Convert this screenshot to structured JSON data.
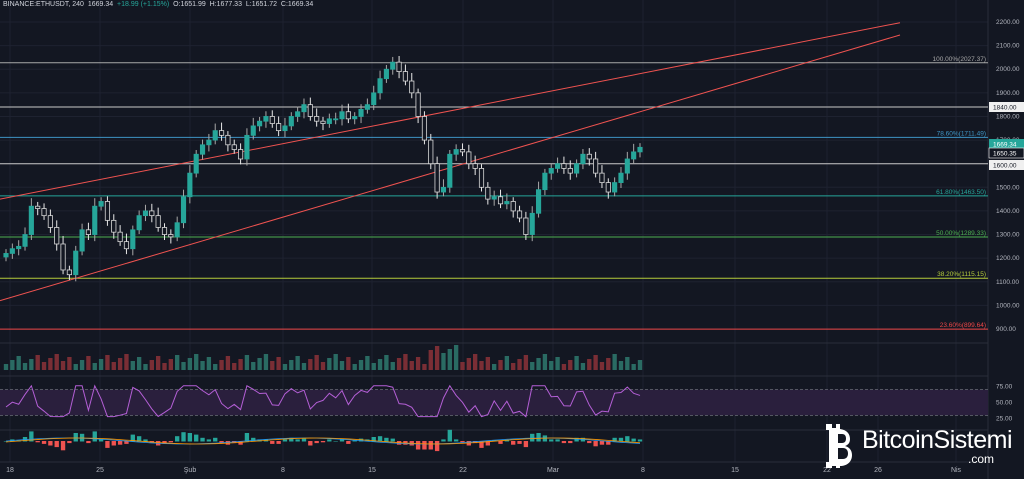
{
  "header": {
    "symbol": "BINANCE:ETHUSDT, 240",
    "last": "1669.34",
    "change": "+18.99 (+1.15%)",
    "open": "O:1651.99",
    "high": "H:1677.33",
    "low": "L:1651.72",
    "close": "C:1669.34"
  },
  "chart_data": {
    "type": "candlestick",
    "price_axis": {
      "ticks": [
        "2200.00",
        "2100.00",
        "2000.00",
        "1900.00",
        "1800.00",
        "1700.00",
        "1600.00",
        "1500.00",
        "1400.00",
        "1300.00",
        "1200.00",
        "1100.00",
        "1000.00",
        "900.00"
      ],
      "ylim": [
        860,
        2240
      ]
    },
    "time_axis": {
      "ticks": [
        "18",
        "25",
        "Şub",
        "8",
        "15",
        "22",
        "Mar",
        "8",
        "15",
        "22",
        "26",
        "Nis"
      ]
    },
    "price_tags": [
      {
        "value": 1840,
        "label": "1840.00",
        "style": "white"
      },
      {
        "value": 1669.34,
        "label": "1669.34",
        "style": "green"
      },
      {
        "value": 1650.35,
        "label": "1650.35",
        "style": "dark"
      },
      {
        "value": 1600,
        "label": "1600.00",
        "style": "white"
      }
    ],
    "fib_levels": [
      {
        "value": 2027.37,
        "label": "100.00%(2027.37)",
        "color": "#a8a8a8"
      },
      {
        "value": 1711.49,
        "label": "78.60%(1711.49)",
        "color": "#3e95c5"
      },
      {
        "value": 1463.5,
        "label": "61.80%(1463.50)",
        "color": "#26a69a"
      },
      {
        "value": 1289.33,
        "label": "50.00%(1289.33)",
        "color": "#4caf50"
      },
      {
        "value": 1115.15,
        "label": "38.20%(1115.15)",
        "color": "#b5cc3b"
      },
      {
        "value": 899.64,
        "label": "23.60%(899.64)",
        "color": "#ef4747"
      }
    ],
    "horizontal_lines": [
      {
        "value": 1840,
        "color": "#c8c8c8"
      },
      {
        "value": 1600,
        "color": "#c8c8c8"
      }
    ],
    "trendlines": [
      {
        "from": [
          0,
          1450
        ],
        "to": [
          60,
          2270
        ],
        "color": "#ef5350"
      },
      {
        "from": [
          0,
          1020
        ],
        "to": [
          60,
          2255
        ],
        "color": "#ef5350"
      }
    ],
    "close_series": [
      1220,
      1240,
      1250,
      1300,
      1420,
      1410,
      1380,
      1330,
      1260,
      1150,
      1130,
      1230,
      1320,
      1300,
      1420,
      1440,
      1360,
      1310,
      1270,
      1240,
      1320,
      1380,
      1400,
      1380,
      1330,
      1300,
      1290,
      1350,
      1460,
      1560,
      1640,
      1680,
      1700,
      1740,
      1720,
      1680,
      1660,
      1620,
      1720,
      1760,
      1780,
      1800,
      1770,
      1740,
      1760,
      1800,
      1820,
      1850,
      1800,
      1780,
      1770,
      1790,
      1790,
      1820,
      1790,
      1800,
      1830,
      1850,
      1900,
      1960,
      2000,
      2030,
      1990,
      1950,
      1900,
      1800,
      1700,
      1600,
      1480,
      1500,
      1640,
      1660,
      1650,
      1600,
      1580,
      1500,
      1450,
      1460,
      1430,
      1440,
      1400,
      1370,
      1300,
      1390,
      1490,
      1560,
      1580,
      1600,
      1580,
      1560,
      1600,
      1640,
      1620,
      1560,
      1520,
      1480,
      1520,
      1560,
      1620,
      1650,
      1669.34
    ],
    "rsi": {
      "ticks": [
        "75.00",
        "50.00",
        "25.00"
      ],
      "levels": [
        70,
        30
      ],
      "range": [
        15,
        85
      ]
    }
  },
  "logo": {
    "text": "BitcoinSistemi",
    "suffix": ".com"
  }
}
